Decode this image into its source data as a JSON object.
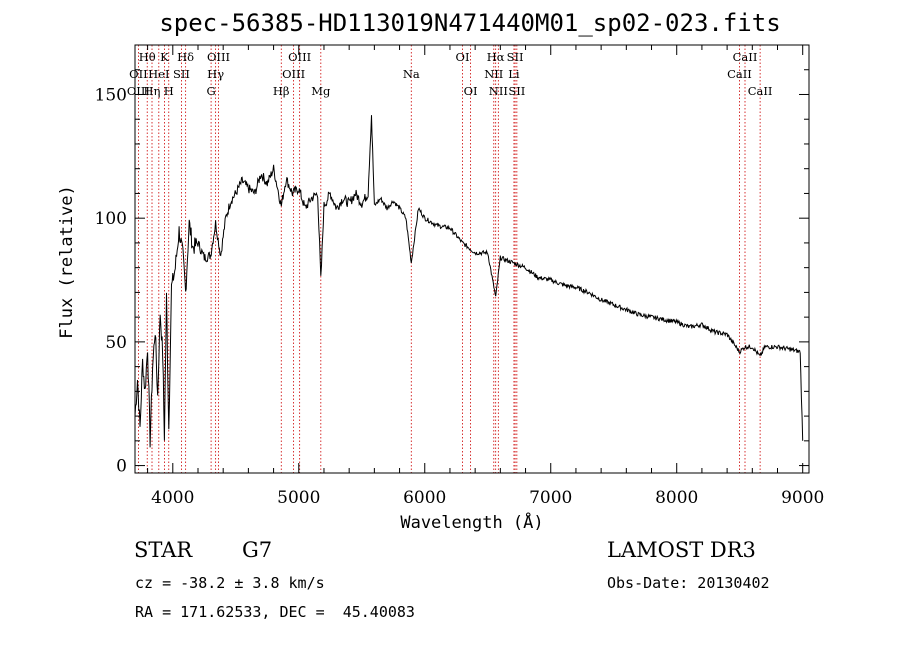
{
  "chart_data": {
    "type": "line",
    "title": "spec-56385-HD113019N471440M01_sp02-023.fits",
    "xlabel": "Wavelength (Å)",
    "ylabel": "Flux (relative)",
    "xlim": [
      3700,
      9050
    ],
    "ylim": [
      -3,
      170
    ],
    "x_ticks": [
      4000,
      5000,
      6000,
      7000,
      8000,
      9000
    ],
    "y_ticks": [
      0,
      50,
      100,
      150
    ],
    "series": [
      {
        "name": "flux",
        "x": [
          3700,
          3720,
          3740,
          3760,
          3780,
          3800,
          3820,
          3840,
          3860,
          3880,
          3900,
          3920,
          3933,
          3950,
          3968,
          3990,
          4020,
          4050,
          4080,
          4102,
          4130,
          4160,
          4200,
          4250,
          4300,
          4340,
          4380,
          4420,
          4460,
          4500,
          4550,
          4600,
          4650,
          4700,
          4750,
          4800,
          4861,
          4900,
          4950,
          5000,
          5050,
          5100,
          5150,
          5175,
          5200,
          5250,
          5300,
          5350,
          5400,
          5450,
          5500,
          5550,
          5577,
          5600,
          5650,
          5700,
          5750,
          5800,
          5850,
          5893,
          5950,
          6000,
          6100,
          6200,
          6300,
          6400,
          6500,
          6563,
          6600,
          6700,
          6800,
          6900,
          7000,
          7100,
          7200,
          7300,
          7400,
          7500,
          7600,
          7700,
          7800,
          7900,
          8000,
          8100,
          8200,
          8300,
          8400,
          8498,
          8542,
          8600,
          8662,
          8700,
          8800,
          8900,
          8980,
          9000
        ],
        "y": [
          20,
          35,
          15,
          42,
          30,
          48,
          10,
          40,
          55,
          28,
          62,
          45,
          12,
          68,
          15,
          72,
          80,
          95,
          85,
          70,
          98,
          88,
          90,
          84,
          85,
          98,
          85,
          100,
          107,
          110,
          115,
          112,
          110,
          118,
          114,
          120,
          105,
          116,
          110,
          112,
          104,
          108,
          110,
          75,
          105,
          110,
          104,
          108,
          106,
          110,
          106,
          110,
          142,
          105,
          108,
          104,
          107,
          104,
          100,
          82,
          104,
          100,
          97,
          96,
          90,
          86,
          86,
          68,
          84,
          82,
          80,
          76,
          75,
          73,
          72,
          70,
          67,
          65,
          63,
          61,
          60,
          59,
          58,
          56,
          57,
          54,
          53,
          46,
          48,
          48,
          44,
          48,
          48,
          47,
          46,
          10
        ]
      }
    ],
    "spectral_lines": [
      {
        "label": "Hθ",
        "x": 3797,
        "row": 0
      },
      {
        "label": "OII",
        "x": 3727,
        "row": 1
      },
      {
        "label": "OIII",
        "x": 3727,
        "row": 2
      },
      {
        "label": "Hη",
        "x": 3835,
        "row": 2
      },
      {
        "label": "HeI",
        "x": 3889,
        "row": 1
      },
      {
        "label": "K",
        "x": 3934,
        "row": 0
      },
      {
        "label": "H",
        "x": 3968,
        "row": 2
      },
      {
        "label": "SII",
        "x": 4069,
        "row": 1
      },
      {
        "label": "Hδ",
        "x": 4102,
        "row": 0
      },
      {
        "label": "OIII",
        "x": 4363,
        "row": 0
      },
      {
        "label": "Hγ",
        "x": 4340,
        "row": 1
      },
      {
        "label": "G",
        "x": 4304,
        "row": 2
      },
      {
        "label": "Hβ",
        "x": 4861,
        "row": 2
      },
      {
        "label": "OIII",
        "x": 5007,
        "row": 0
      },
      {
        "label": "OIII",
        "x": 4959,
        "row": 1
      },
      {
        "label": "Mg",
        "x": 5175,
        "row": 2
      },
      {
        "label": "Na",
        "x": 5893,
        "row": 1
      },
      {
        "label": "OI",
        "x": 6300,
        "row": 0
      },
      {
        "label": "OI",
        "x": 6364,
        "row": 2
      },
      {
        "label": "Hα",
        "x": 6563,
        "row": 0
      },
      {
        "label": "NII",
        "x": 6548,
        "row": 1
      },
      {
        "label": "NII",
        "x": 6584,
        "row": 2
      },
      {
        "label": "SII",
        "x": 6717,
        "row": 0
      },
      {
        "label": "Li",
        "x": 6708,
        "row": 1
      },
      {
        "label": "SII",
        "x": 6731,
        "row": 2
      },
      {
        "label": "CaII",
        "x": 8542,
        "row": 0
      },
      {
        "label": "CaII",
        "x": 8498,
        "row": 1
      },
      {
        "label": "CaII",
        "x": 8662,
        "row": 2
      }
    ]
  },
  "info": {
    "object_class": "STAR",
    "subclass": "G7",
    "survey": "LAMOST DR3",
    "redshift": "cz = -38.2 ± 3.8 km/s",
    "obs_date": "Obs-Date: 20130402",
    "coords": "RA = 171.62533, DEC =  45.40083"
  },
  "colors": {
    "spectrum": "#000000",
    "line_markers": "#cc0000"
  }
}
